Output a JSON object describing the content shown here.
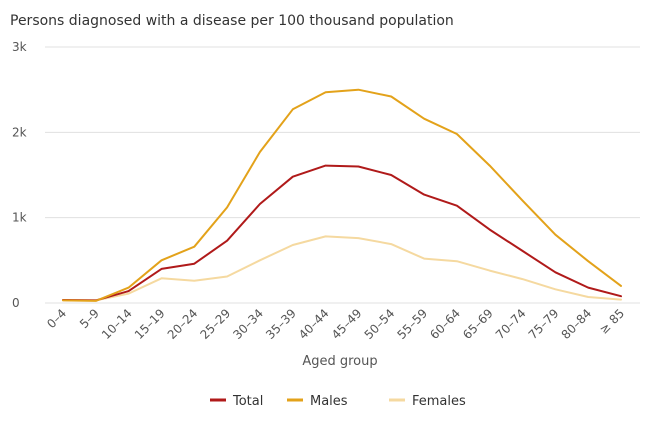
{
  "chart_data": {
    "type": "line",
    "title": "Persons diagnosed with a disease per 100 thousand population",
    "xlabel": "Aged group",
    "ylabel": "",
    "ylim": [
      0,
      3000
    ],
    "yticks": [
      {
        "value": 0,
        "label": "0"
      },
      {
        "value": 1000,
        "label": "1k"
      },
      {
        "value": 2000,
        "label": "2k"
      },
      {
        "value": 3000,
        "label": "3k"
      }
    ],
    "grid": true,
    "legend": "bottom-center",
    "categories": [
      "0–4",
      "5–9",
      "10–14",
      "15–19",
      "20–24",
      "25–29",
      "30–34",
      "35–39",
      "40–44",
      "45–49",
      "50–54",
      "55–59",
      "60–64",
      "65–69",
      "70–74",
      "75–79",
      "80–84",
      "≥ 85"
    ],
    "series": [
      {
        "name": "Total",
        "color": "#b01a1a",
        "values": [
          35,
          30,
          140,
          400,
          460,
          730,
          1160,
          1480,
          1610,
          1600,
          1500,
          1270,
          1140,
          860,
          610,
          360,
          180,
          80
        ]
      },
      {
        "name": "Males",
        "color": "#e3a21a",
        "values": [
          30,
          25,
          180,
          500,
          660,
          1120,
          1770,
          2270,
          2470,
          2500,
          2420,
          2160,
          1980,
          1610,
          1200,
          800,
          490,
          200
        ]
      },
      {
        "name": "Females",
        "color": "#f5d9a0",
        "values": [
          35,
          30,
          110,
          290,
          260,
          310,
          500,
          680,
          780,
          760,
          690,
          520,
          490,
          380,
          280,
          160,
          70,
          40
        ]
      }
    ]
  }
}
